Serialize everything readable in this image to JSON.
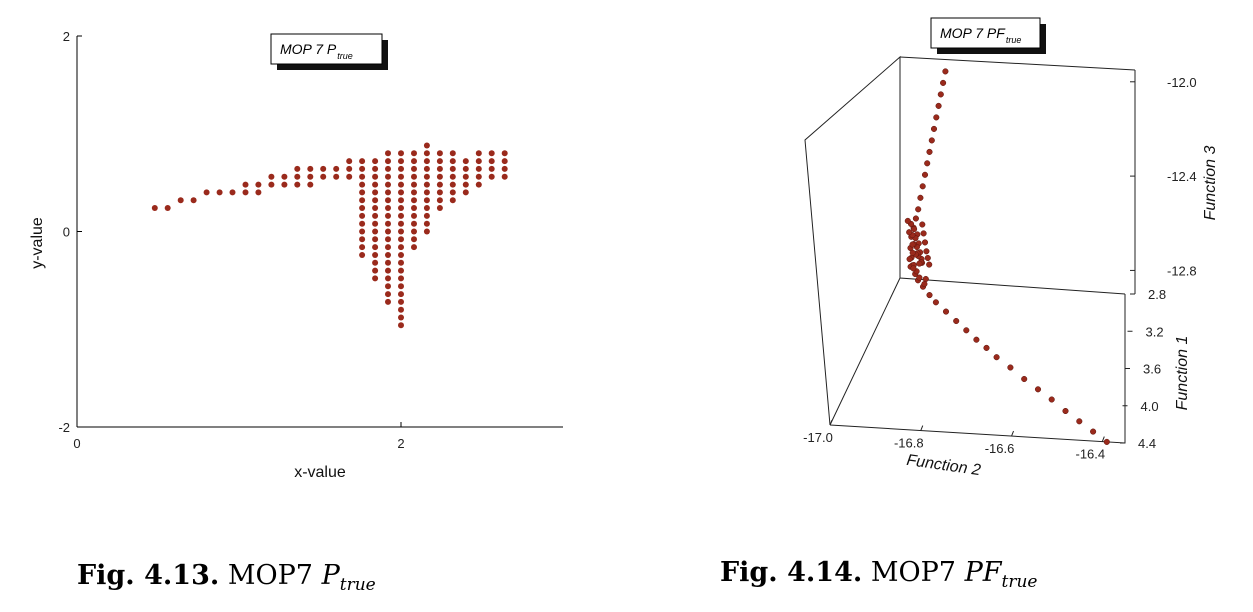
{
  "chart_data": [
    {
      "type": "scatter",
      "title": "MOP 7 P",
      "title_subscript": "true",
      "xlabel": "x-value",
      "ylabel": "y-value",
      "xlim": [
        0,
        3
      ],
      "ylim": [
        -2,
        2
      ],
      "xticks": [
        "0",
        "2"
      ],
      "yticks": [
        "2",
        "0",
        "-2"
      ],
      "marker_color": "#9a2a1c",
      "grid": false,
      "points": [
        [
          0.48,
          0.24
        ],
        [
          0.56,
          0.24
        ],
        [
          0.64,
          0.32
        ],
        [
          0.72,
          0.32
        ],
        [
          0.8,
          0.4
        ],
        [
          0.88,
          0.4
        ],
        [
          0.96,
          0.4
        ],
        [
          1.04,
          0.48
        ],
        [
          1.04,
          0.4
        ],
        [
          1.12,
          0.48
        ],
        [
          1.12,
          0.4
        ],
        [
          1.2,
          0.56
        ],
        [
          1.2,
          0.48
        ],
        [
          1.28,
          0.56
        ],
        [
          1.28,
          0.48
        ],
        [
          1.36,
          0.64
        ],
        [
          1.36,
          0.56
        ],
        [
          1.36,
          0.48
        ],
        [
          1.44,
          0.64
        ],
        [
          1.44,
          0.56
        ],
        [
          1.44,
          0.48
        ],
        [
          1.52,
          0.64
        ],
        [
          1.52,
          0.56
        ],
        [
          1.6,
          0.64
        ],
        [
          1.6,
          0.56
        ],
        [
          1.68,
          0.72
        ],
        [
          1.68,
          0.64
        ],
        [
          1.68,
          0.56
        ],
        [
          1.76,
          0.72
        ],
        [
          1.76,
          0.64
        ],
        [
          1.76,
          0.56
        ],
        [
          1.76,
          0.48
        ],
        [
          1.76,
          0.4
        ],
        [
          1.76,
          0.32
        ],
        [
          1.76,
          0.24
        ],
        [
          1.76,
          0.16
        ],
        [
          1.76,
          0.08
        ],
        [
          1.76,
          0.0
        ],
        [
          1.76,
          -0.08
        ],
        [
          1.76,
          -0.16
        ],
        [
          1.76,
          -0.24
        ],
        [
          1.84,
          0.72
        ],
        [
          1.84,
          0.64
        ],
        [
          1.84,
          0.56
        ],
        [
          1.84,
          0.48
        ],
        [
          1.84,
          0.4
        ],
        [
          1.84,
          0.32
        ],
        [
          1.84,
          0.24
        ],
        [
          1.84,
          0.16
        ],
        [
          1.84,
          0.08
        ],
        [
          1.84,
          0.0
        ],
        [
          1.84,
          -0.08
        ],
        [
          1.84,
          -0.16
        ],
        [
          1.84,
          -0.24
        ],
        [
          1.84,
          -0.32
        ],
        [
          1.84,
          -0.4
        ],
        [
          1.84,
          -0.48
        ],
        [
          1.92,
          0.8
        ],
        [
          1.92,
          0.72
        ],
        [
          1.92,
          0.64
        ],
        [
          1.92,
          0.56
        ],
        [
          1.92,
          0.48
        ],
        [
          1.92,
          0.4
        ],
        [
          1.92,
          0.32
        ],
        [
          1.92,
          0.24
        ],
        [
          1.92,
          0.16
        ],
        [
          1.92,
          0.08
        ],
        [
          1.92,
          0.0
        ],
        [
          1.92,
          -0.08
        ],
        [
          1.92,
          -0.16
        ],
        [
          1.92,
          -0.24
        ],
        [
          1.92,
          -0.32
        ],
        [
          1.92,
          -0.4
        ],
        [
          1.92,
          -0.48
        ],
        [
          1.92,
          -0.56
        ],
        [
          1.92,
          -0.64
        ],
        [
          1.92,
          -0.72
        ],
        [
          2.0,
          0.8
        ],
        [
          2.0,
          0.72
        ],
        [
          2.0,
          0.64
        ],
        [
          2.0,
          0.56
        ],
        [
          2.0,
          0.48
        ],
        [
          2.0,
          0.4
        ],
        [
          2.0,
          0.32
        ],
        [
          2.0,
          0.24
        ],
        [
          2.0,
          0.16
        ],
        [
          2.0,
          0.08
        ],
        [
          2.0,
          0.0
        ],
        [
          2.0,
          -0.08
        ],
        [
          2.0,
          -0.16
        ],
        [
          2.0,
          -0.24
        ],
        [
          2.0,
          -0.32
        ],
        [
          2.0,
          -0.4
        ],
        [
          2.0,
          -0.48
        ],
        [
          2.0,
          -0.56
        ],
        [
          2.0,
          -0.64
        ],
        [
          2.0,
          -0.72
        ],
        [
          2.0,
          -0.8
        ],
        [
          2.0,
          -0.88
        ],
        [
          2.0,
          -0.96
        ],
        [
          2.08,
          0.8
        ],
        [
          2.08,
          0.72
        ],
        [
          2.08,
          0.64
        ],
        [
          2.08,
          0.56
        ],
        [
          2.08,
          0.48
        ],
        [
          2.08,
          0.4
        ],
        [
          2.08,
          0.32
        ],
        [
          2.08,
          0.24
        ],
        [
          2.08,
          0.16
        ],
        [
          2.08,
          0.08
        ],
        [
          2.08,
          0.0
        ],
        [
          2.08,
          -0.08
        ],
        [
          2.08,
          -0.16
        ],
        [
          2.16,
          0.88
        ],
        [
          2.16,
          0.8
        ],
        [
          2.16,
          0.72
        ],
        [
          2.16,
          0.64
        ],
        [
          2.16,
          0.56
        ],
        [
          2.16,
          0.48
        ],
        [
          2.16,
          0.4
        ],
        [
          2.16,
          0.32
        ],
        [
          2.16,
          0.24
        ],
        [
          2.16,
          0.16
        ],
        [
          2.16,
          0.08
        ],
        [
          2.16,
          0.0
        ],
        [
          2.24,
          0.8
        ],
        [
          2.24,
          0.72
        ],
        [
          2.24,
          0.64
        ],
        [
          2.24,
          0.56
        ],
        [
          2.24,
          0.48
        ],
        [
          2.24,
          0.4
        ],
        [
          2.24,
          0.32
        ],
        [
          2.24,
          0.24
        ],
        [
          2.32,
          0.8
        ],
        [
          2.32,
          0.72
        ],
        [
          2.32,
          0.64
        ],
        [
          2.32,
          0.56
        ],
        [
          2.32,
          0.48
        ],
        [
          2.32,
          0.4
        ],
        [
          2.32,
          0.32
        ],
        [
          2.4,
          0.72
        ],
        [
          2.4,
          0.64
        ],
        [
          2.4,
          0.56
        ],
        [
          2.4,
          0.48
        ],
        [
          2.4,
          0.4
        ],
        [
          2.48,
          0.8
        ],
        [
          2.48,
          0.72
        ],
        [
          2.48,
          0.64
        ],
        [
          2.48,
          0.56
        ],
        [
          2.48,
          0.48
        ],
        [
          2.56,
          0.8
        ],
        [
          2.56,
          0.72
        ],
        [
          2.56,
          0.64
        ],
        [
          2.56,
          0.56
        ],
        [
          2.64,
          0.8
        ],
        [
          2.64,
          0.72
        ],
        [
          2.64,
          0.64
        ],
        [
          2.64,
          0.56
        ]
      ]
    },
    {
      "type": "scatter",
      "projection": "3d",
      "title": "MOP 7 PF",
      "title_subscript": "true",
      "xlabel": "Function 1",
      "ylabel": "Function 2",
      "zlabel": "Function 3",
      "xlim": [
        2.8,
        4.4
      ],
      "ylim": [
        -17.0,
        -16.35
      ],
      "zlim": [
        -12.9,
        -11.95
      ],
      "xticks": [
        "2.8",
        "3.2",
        "3.6",
        "4.0",
        "4.4"
      ],
      "yticks": [
        "-17.0",
        "-16.8",
        "-16.6",
        "-16.4"
      ],
      "zticks": [
        "-12.0",
        "-12.4",
        "-12.8"
      ],
      "marker_color": "#9a2a1c",
      "grid": false,
      "points": [
        [
          2.8,
          -16.9,
          -12.0
        ],
        [
          2.8,
          -16.905,
          -12.05
        ],
        [
          2.8,
          -16.91,
          -12.1
        ],
        [
          2.8,
          -16.915,
          -12.15
        ],
        [
          2.8,
          -16.92,
          -12.2
        ],
        [
          2.8,
          -16.925,
          -12.25
        ],
        [
          2.8,
          -16.93,
          -12.3
        ],
        [
          2.8,
          -16.935,
          -12.35
        ],
        [
          2.8,
          -16.94,
          -12.4
        ],
        [
          2.8,
          -16.945,
          -12.45
        ],
        [
          2.8,
          -16.95,
          -12.5
        ],
        [
          2.8,
          -16.955,
          -12.55
        ],
        [
          2.8,
          -16.96,
          -12.6
        ],
        [
          2.8,
          -16.965,
          -12.64
        ],
        [
          2.8,
          -16.97,
          -12.68
        ],
        [
          2.8,
          -16.975,
          -12.72
        ],
        [
          2.82,
          -16.975,
          -12.76
        ],
        [
          2.85,
          -16.97,
          -12.79
        ],
        [
          2.88,
          -16.965,
          -12.81
        ],
        [
          2.92,
          -16.955,
          -12.83
        ],
        [
          2.96,
          -16.945,
          -12.84
        ],
        [
          3.0,
          -16.93,
          -12.85
        ],
        [
          3.06,
          -16.91,
          -12.86
        ],
        [
          3.12,
          -16.89,
          -12.865
        ],
        [
          3.2,
          -16.86,
          -12.87
        ],
        [
          3.28,
          -16.83,
          -12.875
        ],
        [
          3.36,
          -16.8,
          -12.88
        ],
        [
          3.44,
          -16.77,
          -12.885
        ],
        [
          3.52,
          -16.74,
          -12.885
        ],
        [
          3.6,
          -16.71,
          -12.89
        ],
        [
          3.7,
          -16.67,
          -12.89
        ],
        [
          3.8,
          -16.63,
          -12.895
        ],
        [
          3.9,
          -16.59,
          -12.895
        ],
        [
          4.0,
          -16.55,
          -12.895
        ],
        [
          4.1,
          -16.51,
          -12.9
        ],
        [
          4.2,
          -16.47,
          -12.9
        ],
        [
          4.3,
          -16.43,
          -12.9
        ],
        [
          4.4,
          -16.39,
          -12.9
        ],
        [
          2.82,
          -16.96,
          -12.7
        ],
        [
          2.84,
          -16.955,
          -12.73
        ],
        [
          2.86,
          -16.95,
          -12.76
        ],
        [
          2.88,
          -16.945,
          -12.78
        ],
        [
          2.84,
          -16.965,
          -12.67
        ],
        [
          2.86,
          -16.96,
          -12.7
        ],
        [
          2.88,
          -16.955,
          -12.73
        ],
        [
          2.9,
          -16.95,
          -12.76
        ],
        [
          2.92,
          -16.94,
          -12.78
        ],
        [
          2.86,
          -16.97,
          -12.64
        ],
        [
          2.88,
          -16.965,
          -12.68
        ],
        [
          2.9,
          -16.96,
          -12.71
        ],
        [
          2.92,
          -16.95,
          -12.74
        ],
        [
          2.94,
          -16.94,
          -12.77
        ],
        [
          2.88,
          -16.975,
          -12.62
        ],
        [
          2.9,
          -16.97,
          -12.66
        ],
        [
          2.93,
          -16.96,
          -12.7
        ],
        [
          2.96,
          -16.95,
          -12.73
        ],
        [
          2.98,
          -16.94,
          -12.76
        ],
        [
          2.82,
          -16.97,
          -12.78
        ],
        [
          2.84,
          -16.975,
          -12.8
        ],
        [
          2.87,
          -16.97,
          -12.82
        ],
        [
          2.9,
          -16.96,
          -12.8
        ],
        [
          2.94,
          -16.95,
          -12.81
        ],
        [
          2.98,
          -16.94,
          -12.82
        ],
        [
          3.02,
          -16.925,
          -12.83
        ],
        [
          3.04,
          -16.92,
          -12.8
        ],
        [
          2.96,
          -16.955,
          -12.79
        ],
        [
          2.81,
          -16.95,
          -12.66
        ],
        [
          2.83,
          -16.945,
          -12.69
        ],
        [
          2.85,
          -16.94,
          -12.72
        ],
        [
          2.87,
          -16.935,
          -12.75
        ],
        [
          2.89,
          -16.93,
          -12.77
        ],
        [
          2.91,
          -16.925,
          -12.79
        ]
      ]
    }
  ],
  "captions": [
    {
      "label": "Fig. 4.13.",
      "text": "MOP7",
      "symbol": "P",
      "subscript": "true"
    },
    {
      "label": "Fig. 4.14.",
      "text": "MOP7",
      "symbol": "PF",
      "subscript": "true"
    }
  ]
}
